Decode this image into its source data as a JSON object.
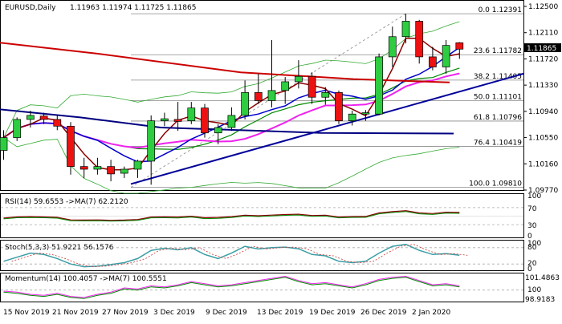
{
  "header": {
    "symbol": "EURUSD,Daily",
    "ohlc": "1.11963 1.11974 1.11725 1.11865"
  },
  "price_label": "1.11865",
  "price_axis": [
    "1.12500",
    "1.12110",
    "1.11720",
    "1.11330",
    "1.10940",
    "1.10550",
    "1.10160",
    "1.09770"
  ],
  "fib_levels": [
    {
      "label": "0.0 1.12391",
      "price": 1.12391
    },
    {
      "label": "23.6 1.11782",
      "price": 1.11782
    },
    {
      "label": "38.2 1.11405",
      "price": 1.11405
    },
    {
      "label": "50.0 1.11101",
      "price": 1.11101
    },
    {
      "label": "61.8 1.10796",
      "price": 1.10796
    },
    {
      "label": "76.4 1.10419",
      "price": 1.10419
    },
    {
      "label": "100.0 1.09810",
      "price": 1.0981
    }
  ],
  "date_labels": [
    "15 Nov 2019",
    "21 Nov 2019",
    "27 Nov 2019",
    "3 Dec 2019",
    "9 Dec 2019",
    "13 Dec 2019",
    "19 Dec 2019",
    "26 Dec 2019",
    "2 Jan 2020"
  ],
  "rsi": {
    "label": "RSI(14) 59.6553 ->MA(7) 62.2120",
    "axis": [
      "100",
      "70",
      "30",
      "0"
    ]
  },
  "stoch": {
    "label": "Stoch(5,3,3) 51.9221 56.1576",
    "axis": [
      "100",
      "80",
      "20",
      "0"
    ]
  },
  "momentum": {
    "label": "Momentum(14) 100.4057 ->MA(7) 100.5551",
    "axis": [
      "101.4863",
      "100",
      "98.9183"
    ]
  },
  "colors": {
    "bull": "#2ecc40",
    "bear": "#ee1111",
    "ma_red": "#cc0000",
    "ma_navy": "#000080",
    "ma_magenta": "#ee22ee",
    "ma_green": "#008800",
    "ma_maroon": "#8b0000",
    "ma_blue": "#0000cc",
    "bollinger": "#33aa33",
    "trend": "#000099"
  },
  "chart_data": {
    "type": "candlestick",
    "title": "EURUSD,Daily",
    "ylim": [
      1.0977,
      1.125
    ],
    "candles": [
      {
        "o": 1.1036,
        "h": 1.1066,
        "l": 1.1022,
        "c": 1.1055
      },
      {
        "o": 1.1055,
        "h": 1.1085,
        "l": 1.105,
        "c": 1.1082
      },
      {
        "o": 1.1082,
        "h": 1.1095,
        "l": 1.107,
        "c": 1.1088
      },
      {
        "o": 1.1087,
        "h": 1.1092,
        "l": 1.1075,
        "c": 1.1082
      },
      {
        "o": 1.1082,
        "h": 1.1088,
        "l": 1.1066,
        "c": 1.1072
      },
      {
        "o": 1.1072,
        "h": 1.1078,
        "l": 1.1,
        "c": 1.1012
      },
      {
        "o": 1.1012,
        "h": 1.1025,
        "l": 1.0995,
        "c": 1.1008
      },
      {
        "o": 1.1008,
        "h": 1.1025,
        "l": 1.1,
        "c": 1.1012
      },
      {
        "o": 1.1012,
        "h": 1.1022,
        "l": 1.099,
        "c": 1.1001
      },
      {
        "o": 1.1002,
        "h": 1.1012,
        "l": 1.0995,
        "c": 1.1008
      },
      {
        "o": 1.1008,
        "h": 1.1022,
        "l": 1.0995,
        "c": 1.102
      },
      {
        "o": 1.102,
        "h": 1.1088,
        "l": 1.0985,
        "c": 1.108
      },
      {
        "o": 1.108,
        "h": 1.1092,
        "l": 1.1072,
        "c": 1.1083
      },
      {
        "o": 1.1082,
        "h": 1.1108,
        "l": 1.1065,
        "c": 1.1079
      },
      {
        "o": 1.108,
        "h": 1.1108,
        "l": 1.1075,
        "c": 1.1099
      },
      {
        "o": 1.1099,
        "h": 1.1105,
        "l": 1.1055,
        "c": 1.1062
      },
      {
        "o": 1.1062,
        "h": 1.1075,
        "l": 1.1045,
        "c": 1.107
      },
      {
        "o": 1.107,
        "h": 1.11,
        "l": 1.1065,
        "c": 1.1088
      },
      {
        "o": 1.1088,
        "h": 1.114,
        "l": 1.1082,
        "c": 1.1122
      },
      {
        "o": 1.1122,
        "h": 1.115,
        "l": 1.1105,
        "c": 1.111
      },
      {
        "o": 1.111,
        "h": 1.12,
        "l": 1.11,
        "c": 1.1125
      },
      {
        "o": 1.1125,
        "h": 1.1145,
        "l": 1.1105,
        "c": 1.1138
      },
      {
        "o": 1.1138,
        "h": 1.117,
        "l": 1.1128,
        "c": 1.1146
      },
      {
        "o": 1.1146,
        "h": 1.1152,
        "l": 1.1105,
        "c": 1.1115
      },
      {
        "o": 1.1115,
        "h": 1.113,
        "l": 1.1104,
        "c": 1.1122
      },
      {
        "o": 1.1122,
        "h": 1.1125,
        "l": 1.1075,
        "c": 1.108
      },
      {
        "o": 1.108,
        "h": 1.1095,
        "l": 1.1073,
        "c": 1.109
      },
      {
        "o": 1.109,
        "h": 1.1096,
        "l": 1.108,
        "c": 1.1092
      },
      {
        "o": 1.109,
        "h": 1.118,
        "l": 1.1088,
        "c": 1.1175
      },
      {
        "o": 1.1175,
        "h": 1.122,
        "l": 1.116,
        "c": 1.1205
      },
      {
        "o": 1.1205,
        "h": 1.1239,
        "l": 1.1195,
        "c": 1.1228
      },
      {
        "o": 1.1228,
        "h": 1.123,
        "l": 1.1165,
        "c": 1.1175
      },
      {
        "o": 1.1175,
        "h": 1.119,
        "l": 1.1155,
        "c": 1.116
      },
      {
        "o": 1.116,
        "h": 1.12,
        "l": 1.115,
        "c": 1.1192
      },
      {
        "o": 1.1196,
        "h": 1.1197,
        "l": 1.1172,
        "c": 1.11865
      }
    ]
  }
}
